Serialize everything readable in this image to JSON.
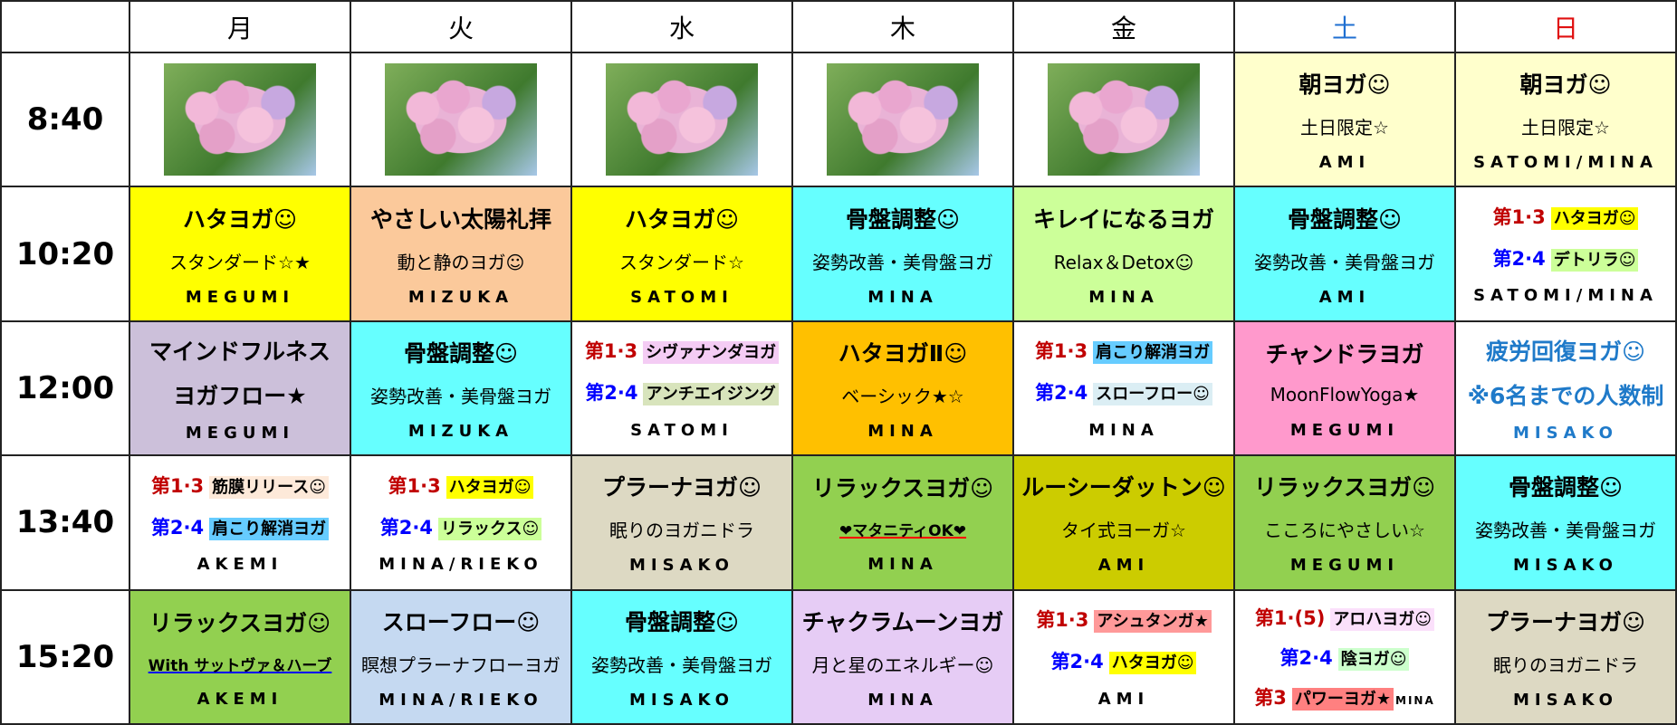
{
  "header": {
    "days": [
      "月",
      "火",
      "水",
      "木",
      "金",
      "土",
      "日"
    ]
  },
  "rows": [
    {
      "time": "8:40",
      "cells": [
        null,
        null,
        null,
        null,
        null,
        {
          "bg": "#ffffcc",
          "title": [
            "朝ヨガ☺"
          ],
          "sub": [
            "土日限定☆"
          ],
          "instructor": "AMI"
        },
        {
          "bg": "#ffffcc",
          "title": [
            "朝ヨガ☺"
          ],
          "sub": [
            "土日限定☆"
          ],
          "instructor": "SATOMI/MINA"
        }
      ]
    },
    {
      "time": "10:20",
      "cells": [
        {
          "bg": "#ffff00",
          "title": [
            "ハタヨガ☺"
          ],
          "sub": [
            "スタンダード☆★"
          ],
          "instructor": "MEGUMI"
        },
        {
          "bg": "#fbc99b",
          "title": [
            "やさしい太陽礼拝"
          ],
          "sub": [
            "動と静のヨガ☺"
          ],
          "instructor": "MIZUKA"
        },
        {
          "bg": "#ffff00",
          "title": [
            "ハタヨガ☺"
          ],
          "sub": [
            "スタンダード☆"
          ],
          "instructor": "SATOMI"
        },
        {
          "bg": "#66ffff",
          "title": [
            "骨盤調整☺"
          ],
          "sub": [
            "姿勢改善・美骨盤ヨガ"
          ],
          "instructor": "MINA"
        },
        {
          "bg": "#ccff99",
          "title": [
            "キレイになるヨガ"
          ],
          "sub": [
            "Relax＆Detox☺"
          ],
          "instructor": "MINA"
        },
        {
          "bg": "#66ffff",
          "title": [
            "骨盤調整☺"
          ],
          "sub": [
            "姿勢改善・美骨盤ヨガ"
          ],
          "instructor": "AMI"
        },
        {
          "bg": "#ffffff",
          "sub": [
            {
              "p": "第1·3",
              "pc": "#c00000",
              "t": "ハタヨガ☺",
              "hl": "#ffff00"
            },
            {
              "p": "第2·4",
              "pc": "#0000ff",
              "t": "デトリラ☺",
              "hl": "#ccff99"
            }
          ],
          "instructor": "SATOMI/MINA"
        }
      ]
    },
    {
      "time": "12:00",
      "cells": [
        {
          "bg": "#ccc0da",
          "title": [
            "マインドフルネス",
            "ヨガフロー★"
          ],
          "instructor": "MEGUMI"
        },
        {
          "bg": "#66ffff",
          "title": [
            "骨盤調整☺"
          ],
          "sub": [
            "姿勢改善・美骨盤ヨガ"
          ],
          "instructor": "MIZUKA"
        },
        {
          "bg": "#ffffff",
          "sub": [
            {
              "p": "第1·3",
              "pc": "#c00000",
              "t": "シヴァナンダヨガ",
              "hl": "#f4ccf4"
            },
            {
              "p": "第2·4",
              "pc": "#0000ff",
              "t": "アンチエイジング",
              "hl": "#d8e4bc"
            }
          ],
          "instructor": "SATOMI"
        },
        {
          "bg": "#ffc000",
          "title": [
            "ハタヨガⅡ☺"
          ],
          "sub": [
            "ベーシック★☆"
          ],
          "instructor": "MINA"
        },
        {
          "bg": "#ffffff",
          "sub": [
            {
              "p": "第1·3",
              "pc": "#c00000",
              "t": "肩こり解消ヨガ",
              "hl": "#66ccff"
            },
            {
              "p": "第2·4",
              "pc": "#0000ff",
              "t": "スローフロー☺",
              "hl": "#dbeef4"
            }
          ],
          "instructor": "MINA"
        },
        {
          "bg": "#ff99cc",
          "title": [
            "チャンドラヨガ"
          ],
          "sub": [
            "MoonFlowYoga★"
          ],
          "instructor": "MEGUMI"
        },
        {
          "bg": "#ffffff",
          "color": "#1f7ac9",
          "title": [
            "疲労回復ヨガ☺",
            "※6名までの人数制"
          ],
          "instructor": "MISAKO"
        }
      ]
    },
    {
      "time": "13:40",
      "cells": [
        {
          "bg": "#ffffff",
          "sub": [
            {
              "p": "第1·3",
              "pc": "#c00000",
              "t": "筋膜リリース☺",
              "hl": "#fde9d9"
            },
            {
              "p": "第2·4",
              "pc": "#0000ff",
              "t": "肩こり解消ヨガ",
              "hl": "#66ccff"
            }
          ],
          "instructor": "AKEMI"
        },
        {
          "bg": "#ffffff",
          "sub": [
            {
              "p": "第1·3",
              "pc": "#c00000",
              "t": "ハタヨガ☺",
              "hl": "#ffff00"
            },
            {
              "p": "第2·4",
              "pc": "#0000ff",
              "t": "リラックス☺",
              "hl": "#ccff99"
            }
          ],
          "instructor": "MINA/RIEKO"
        },
        {
          "bg": "#ddd9c3",
          "title": [
            "プラーナヨガ☺"
          ],
          "sub": [
            "眠りのヨガニドラ"
          ],
          "instructor": "MISAKO"
        },
        {
          "bg": "#92d050",
          "title": [
            "リラックスヨガ☺"
          ],
          "sub": [
            {
              "t": "❤マタニティOK❤",
              "ul": "#ff0000"
            }
          ],
          "instructor": "MINA"
        },
        {
          "bg": "#cccc00",
          "title": [
            "ルーシーダットン☺"
          ],
          "sub": [
            "タイ式ヨーガ☆"
          ],
          "instructor": "AMI"
        },
        {
          "bg": "#92d050",
          "title": [
            "リラックスヨガ☺"
          ],
          "sub": [
            "こころにやさしい☆"
          ],
          "instructor": "MEGUMI"
        },
        {
          "bg": "#66ffff",
          "title": [
            "骨盤調整☺"
          ],
          "sub": [
            "姿勢改善・美骨盤ヨガ"
          ],
          "instructor": "MISAKO"
        }
      ]
    },
    {
      "time": "15:20",
      "cells": [
        {
          "bg": "#92d050",
          "title": [
            "リラックスヨガ☺"
          ],
          "sub": [
            {
              "t": "With サットヴァ＆ハーブ",
              "ul": "#0000ff"
            }
          ],
          "instructor": "AKEMI"
        },
        {
          "bg": "#c5d9f1",
          "title": [
            "スローフロー☺"
          ],
          "sub": [
            "瞑想プラーナフローヨガ"
          ],
          "instructor": "MINA/RIEKO"
        },
        {
          "bg": "#66ffff",
          "title": [
            "骨盤調整☺"
          ],
          "sub": [
            "姿勢改善・美骨盤ヨガ"
          ],
          "instructor": "MISAKO"
        },
        {
          "bg": "#e6ccf5",
          "title": [
            "チャクラムーンヨガ"
          ],
          "sub": [
            "月と星のエネルギー☺"
          ],
          "instructor": "MINA"
        },
        {
          "bg": "#ffffff",
          "sub": [
            {
              "p": "第1·3",
              "pc": "#c00000",
              "t": "アシュタンガ★",
              "hl": "#ff9999"
            },
            {
              "p": "第2·4",
              "pc": "#0000ff",
              "t": "ハタヨガ☺",
              "hl": "#ffff00"
            }
          ],
          "instructor": "AMI"
        },
        {
          "bg": "#ffffff",
          "sub": [
            {
              "p": "第1·(5)",
              "pc": "#c00000",
              "t": "アロハヨガ☺",
              "hl": "#fbe0fb"
            },
            {
              "p": "第2·4",
              "pc": "#0000ff",
              "t": "陰ヨガ☺",
              "hl": "#ccffcc"
            },
            {
              "p": "第3",
              "pc": "#c00000",
              "t": "パワーヨガ★",
              "hl": "#ff8080",
              "s": "MINA"
            }
          ]
        },
        {
          "bg": "#ddd9c3",
          "title": [
            "プラーナヨガ☺"
          ],
          "sub": [
            "眠りのヨガニドラ"
          ],
          "instructor": "MISAKO"
        }
      ]
    }
  ]
}
